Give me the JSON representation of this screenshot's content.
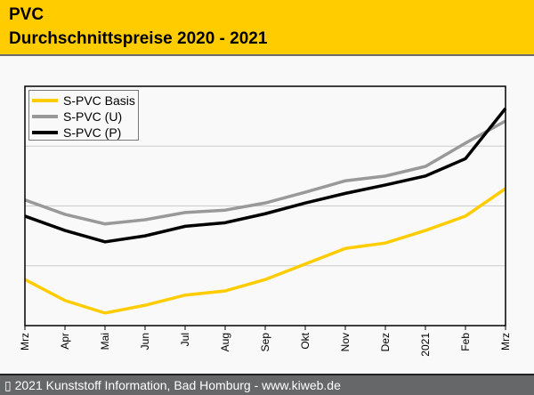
{
  "header": {
    "title": "PVC",
    "subtitle": "Durchschnittspreise 2020 - 2021"
  },
  "footer": {
    "text": "▯ 2021 Kunststoff Information, Bad Homburg - www.kiweb.de"
  },
  "colors": {
    "header_bg": "#ffcc00",
    "basis": "#ffcc00",
    "u": "#999999",
    "p": "#000000",
    "footer_bg": "#666769"
  },
  "chart_data": {
    "type": "line",
    "title": "Durchschnittspreise 2020 - 2021",
    "xlabel": "",
    "ylabel": "",
    "categories": [
      "Mrz",
      "Apr",
      "Mai",
      "Jun",
      "Jul",
      "Aug",
      "Sep",
      "Okt",
      "Nov",
      "Dez",
      "2021",
      "Feb",
      "Mrz"
    ],
    "ylim": [
      0,
      4
    ],
    "y_unit_note": "relative grid units (no y-axis labels shown)",
    "grid": true,
    "legend_position": "top-left",
    "series": [
      {
        "name": "S-PVC Basis",
        "color": "#ffcc00",
        "values": [
          0.77,
          0.42,
          0.21,
          0.34,
          0.51,
          0.58,
          0.77,
          1.03,
          1.29,
          1.38,
          1.59,
          1.83,
          2.29
        ]
      },
      {
        "name": "S-PVC (U)",
        "color": "#999999",
        "values": [
          2.1,
          1.86,
          1.7,
          1.77,
          1.89,
          1.93,
          2.05,
          2.23,
          2.42,
          2.5,
          2.66,
          3.05,
          3.42
        ]
      },
      {
        "name": "S-PVC (P)",
        "color": "#000000",
        "values": [
          1.83,
          1.59,
          1.4,
          1.5,
          1.66,
          1.72,
          1.87,
          2.05,
          2.21,
          2.35,
          2.5,
          2.79,
          3.63
        ]
      }
    ]
  }
}
